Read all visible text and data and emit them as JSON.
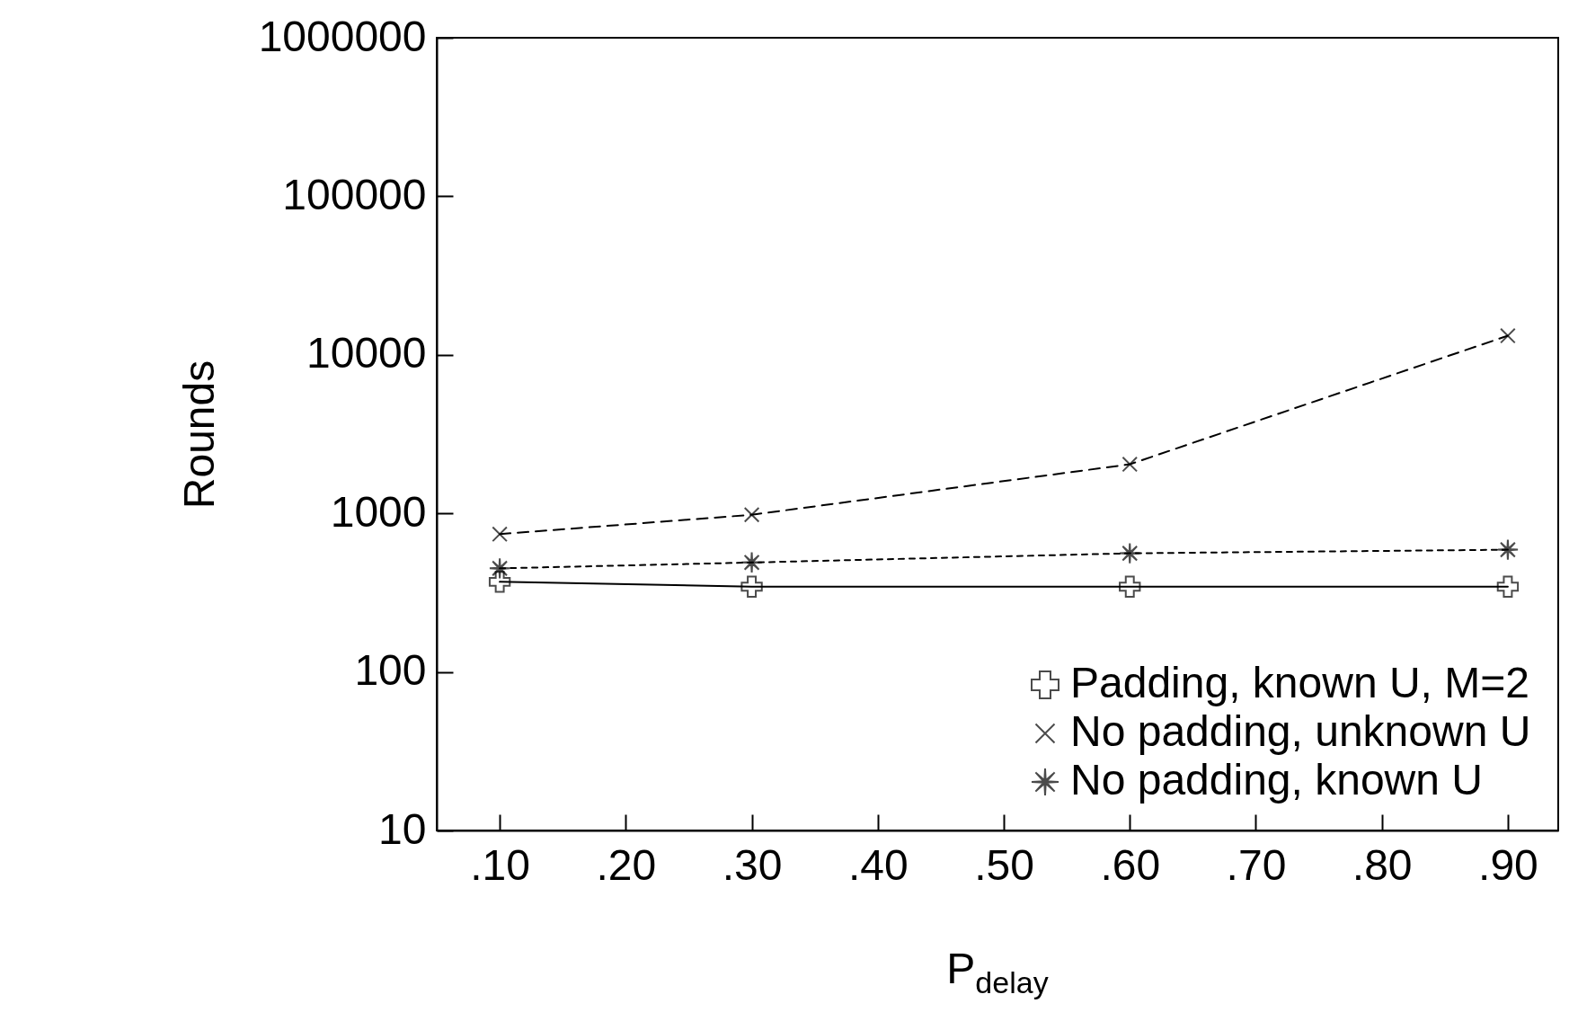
{
  "chart_data": {
    "type": "line",
    "xlabel": "P$_{delay}$",
    "ylabel": "Rounds",
    "x": [
      0.1,
      0.3,
      0.6,
      0.9
    ],
    "xlim": [
      0.05,
      0.94
    ],
    "xticks": [
      {
        "value": 0.1,
        "label": ".10"
      },
      {
        "value": 0.2,
        "label": ".20"
      },
      {
        "value": 0.3,
        "label": ".30"
      },
      {
        "value": 0.4,
        "label": ".40"
      },
      {
        "value": 0.5,
        "label": ".50"
      },
      {
        "value": 0.6,
        "label": ".60"
      },
      {
        "value": 0.7,
        "label": ".70"
      },
      {
        "value": 0.8,
        "label": ".80"
      },
      {
        "value": 0.9,
        "label": ".90"
      }
    ],
    "ylim": [
      10,
      1000000
    ],
    "yticks": [
      10,
      100,
      1000,
      10000,
      100000,
      1000000
    ],
    "log": "y",
    "grid": false,
    "legend": "bottom right",
    "series": [
      {
        "name": "Padding, known U, M=2",
        "color": "#000000",
        "marker": "cross",
        "line_style": "solid",
        "values": [
          370,
          345,
          345,
          345
        ]
      },
      {
        "name": "No padding, unknown U",
        "color": "#000000",
        "marker": "x",
        "line_style": "dashed",
        "values": [
          740,
          980,
          2040,
          13200
        ]
      },
      {
        "name": "No padding, known U",
        "color": "#000000",
        "marker": "star",
        "line_style": "dotted",
        "values": [
          450,
          490,
          560,
          590
        ]
      }
    ]
  }
}
